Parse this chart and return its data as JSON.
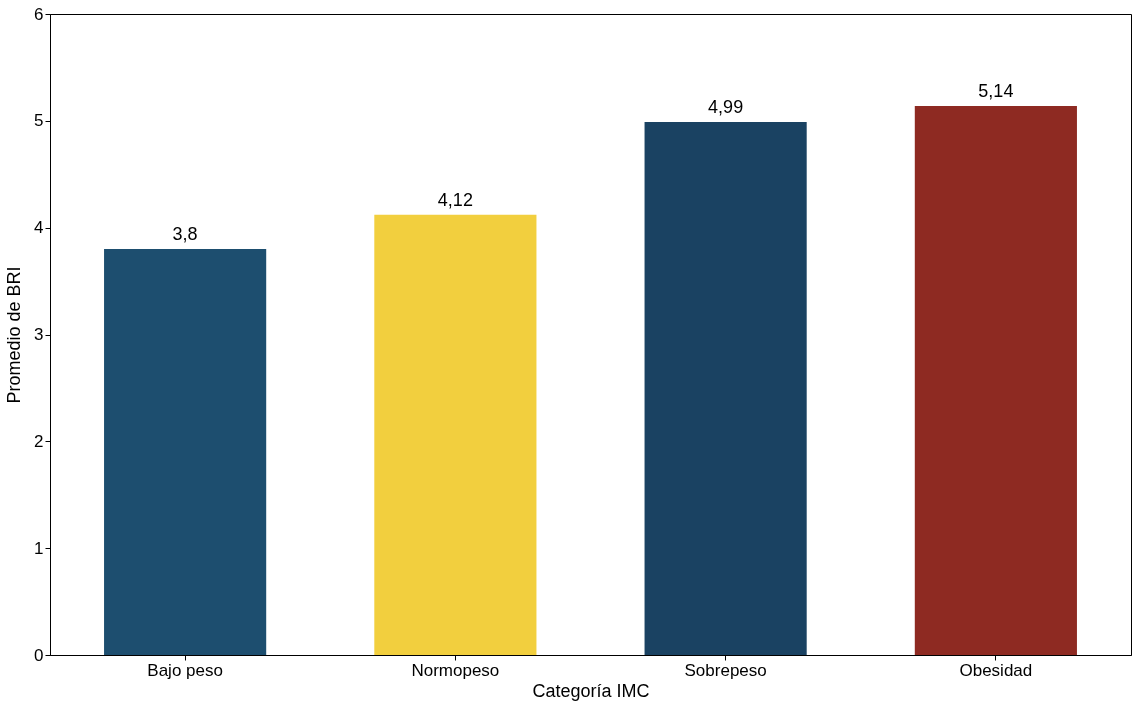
{
  "chart_data": {
    "type": "bar",
    "xlabel": "Categoría IMC",
    "ylabel": "Promedio de BRI",
    "categories": [
      "Bajo peso",
      "Normopeso",
      "Sobrepeso",
      "Obesidad"
    ],
    "values": [
      3.8,
      4.12,
      4.99,
      5.14
    ],
    "colors": [
      "#1d4e6f",
      "#f2cf3e",
      "#1a4262",
      "#8e2a22"
    ],
    "value_labels": [
      "3,8",
      "4,12",
      "4,99",
      "5,14"
    ],
    "ylim": [
      0,
      6
    ],
    "yticks": [
      0,
      1,
      2,
      3,
      4,
      5,
      6
    ],
    "grid": false
  }
}
